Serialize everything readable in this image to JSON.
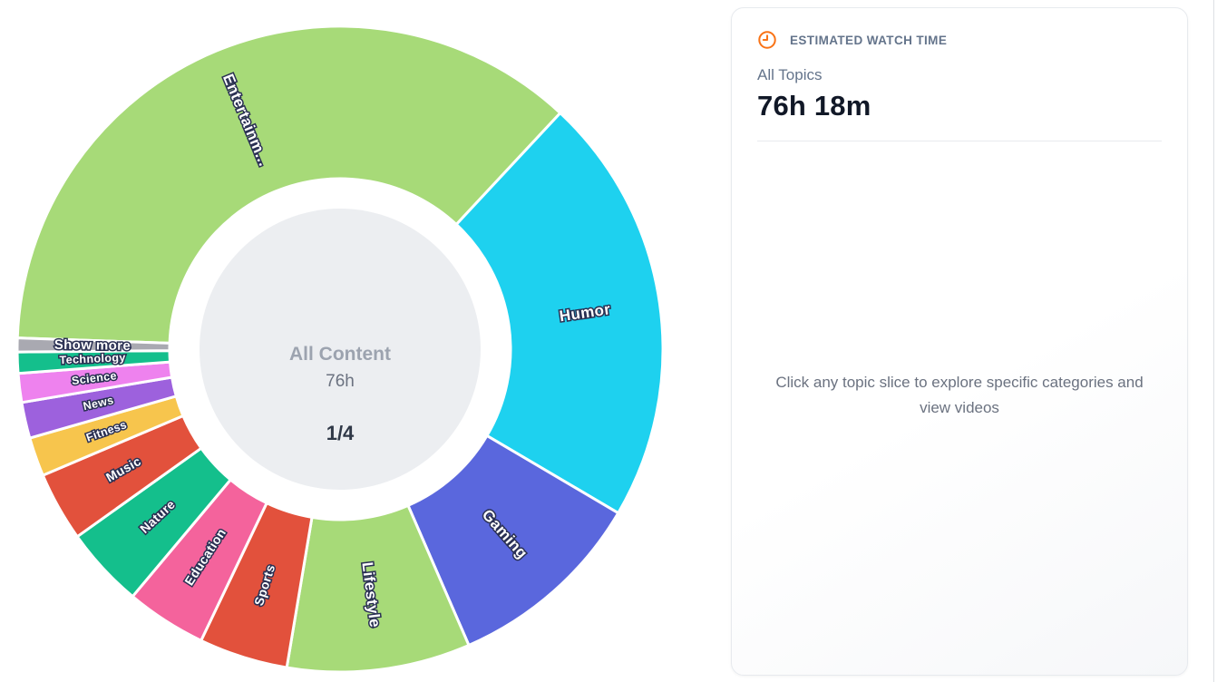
{
  "chart_data": {
    "type": "pie",
    "variant": "donut-sunburst",
    "legend_position": "on-slice",
    "center": {
      "label": "All Content",
      "value": "76h",
      "page": "1/4"
    },
    "geometry_note": "angles are degrees clockwise from 12 o'clock",
    "slices": [
      {
        "label": "Entertainm...",
        "color": "#a7da78",
        "start_deg": 272,
        "end_deg": 403,
        "est_percent": 36.4
      },
      {
        "label": "Humor",
        "color": "#1ed1ef",
        "start_deg": 43,
        "end_deg": 120.5,
        "est_percent": 21.5
      },
      {
        "label": "Gaming",
        "color": "#5a67dd",
        "start_deg": 120.5,
        "end_deg": 156.5,
        "est_percent": 10.0
      },
      {
        "label": "Lifestyle",
        "color": "#a7da78",
        "start_deg": 156.5,
        "end_deg": 189.5,
        "est_percent": 9.2
      },
      {
        "label": "Sports",
        "color": "#e2513c",
        "start_deg": 189.5,
        "end_deg": 205.5,
        "est_percent": 4.4
      },
      {
        "label": "Education",
        "color": "#f4639c",
        "start_deg": 205.5,
        "end_deg": 220,
        "est_percent": 4.0
      },
      {
        "label": "Nature",
        "color": "#14bf8c",
        "start_deg": 220,
        "end_deg": 234.5,
        "est_percent": 4.0
      },
      {
        "label": "Music",
        "color": "#e2513c",
        "start_deg": 234.5,
        "end_deg": 247,
        "est_percent": 3.5
      },
      {
        "label": "Fitness",
        "color": "#f7c54d",
        "start_deg": 247,
        "end_deg": 254,
        "est_percent": 1.9
      },
      {
        "label": "News",
        "color": "#9d61dd",
        "start_deg": 254,
        "end_deg": 260.5,
        "est_percent": 1.8
      },
      {
        "label": "Science",
        "color": "#ee82ee",
        "start_deg": 260.5,
        "end_deg": 265.7,
        "est_percent": 1.4
      },
      {
        "label": "Technology",
        "color": "#14bf8c",
        "start_deg": 265.7,
        "end_deg": 269.5,
        "est_percent": 1.1
      },
      {
        "label": "Show more",
        "color": "#a9a9b1",
        "start_deg": 269.5,
        "end_deg": 272,
        "est_percent": 0.7,
        "label_size": 15
      }
    ]
  },
  "panel": {
    "header": "ESTIMATED WATCH TIME",
    "accent_color": "#f97316",
    "scope_label": "All Topics",
    "watch_time": "76h 18m",
    "hint": "Click any topic slice to explore specific categories and view videos"
  }
}
